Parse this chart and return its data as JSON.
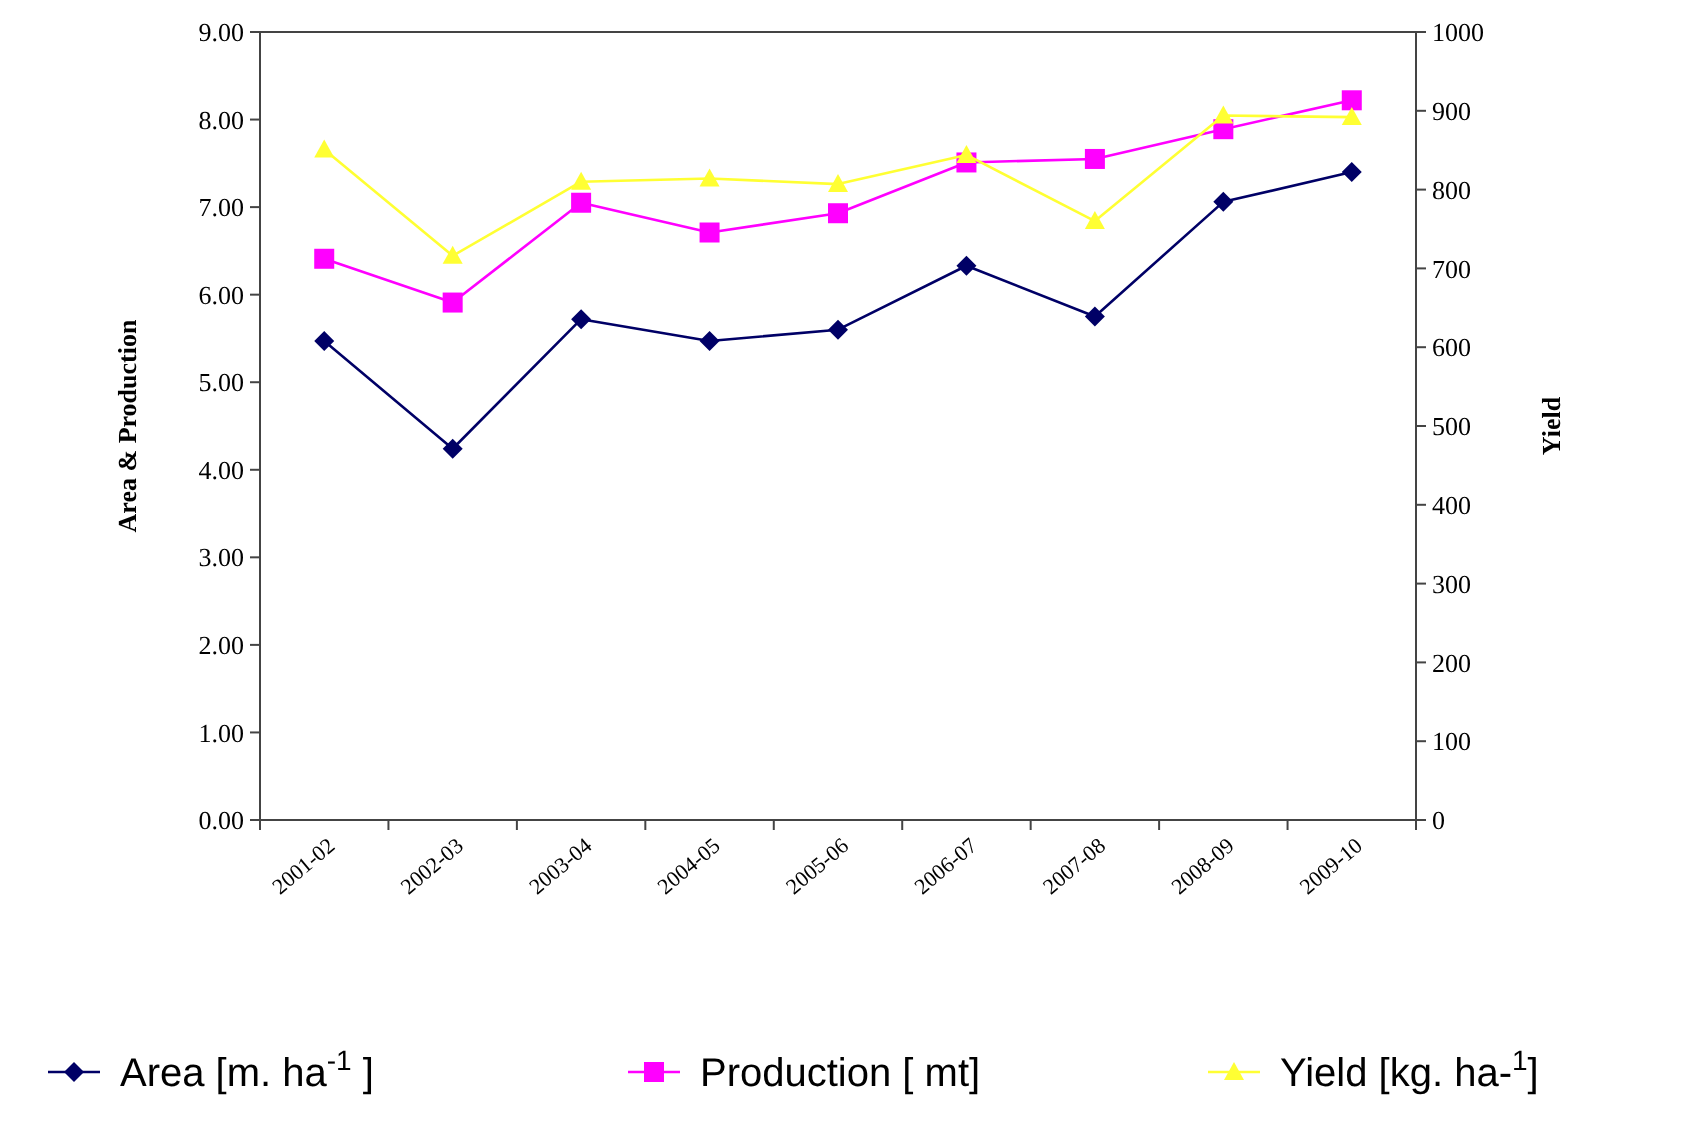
{
  "chart_data": {
    "type": "line",
    "ylabel": "Area & Production",
    "y2label": "Yield",
    "categories": [
      "2001-02",
      "2002-03",
      "2003-04",
      "2004-05",
      "2005-06",
      "2006-07",
      "2007-08",
      "2008-09",
      "2009-10"
    ],
    "series": [
      {
        "name": "Area [m. ha$^{-1}$ ]",
        "color": "#000066",
        "marker": "diamond",
        "values": [
          5.47,
          4.24,
          5.72,
          5.47,
          5.6,
          6.33,
          5.75,
          7.06,
          7.4
        ]
      },
      {
        "name": "Production [ mt]",
        "color": "#ff00ff",
        "marker": "square",
        "values": [
          6.41,
          5.91,
          7.05,
          6.71,
          6.93,
          7.51,
          7.55,
          7.89,
          8.22
        ]
      },
      {
        "name": "Yield [kg. ha-$^{1}$]",
        "color": "#ffff33",
        "marker": "triangle",
        "axis": "y2",
        "values": [
          851,
          716,
          810,
          814,
          807,
          844,
          760,
          894,
          892
        ]
      }
    ],
    "ylim": [
      0,
      9
    ],
    "yticks": [
      {
        "value": 0,
        "label": "0.00"
      },
      {
        "value": 1,
        "label": "1.00"
      },
      {
        "value": 2,
        "label": "2.00"
      },
      {
        "value": 3,
        "label": "3.00"
      },
      {
        "value": 4,
        "label": "4.00"
      },
      {
        "value": 5,
        "label": "5.00"
      },
      {
        "value": 6,
        "label": "6.00"
      },
      {
        "value": 7,
        "label": "7.00"
      },
      {
        "value": 8,
        "label": "8.00"
      },
      {
        "value": 9,
        "label": "9.00"
      }
    ],
    "y2lim": [
      0,
      1000
    ],
    "y2ticks": [
      0,
      100,
      200,
      300,
      400,
      500,
      600,
      700,
      800,
      900,
      1000
    ],
    "grid": false,
    "legend": "bottom"
  }
}
